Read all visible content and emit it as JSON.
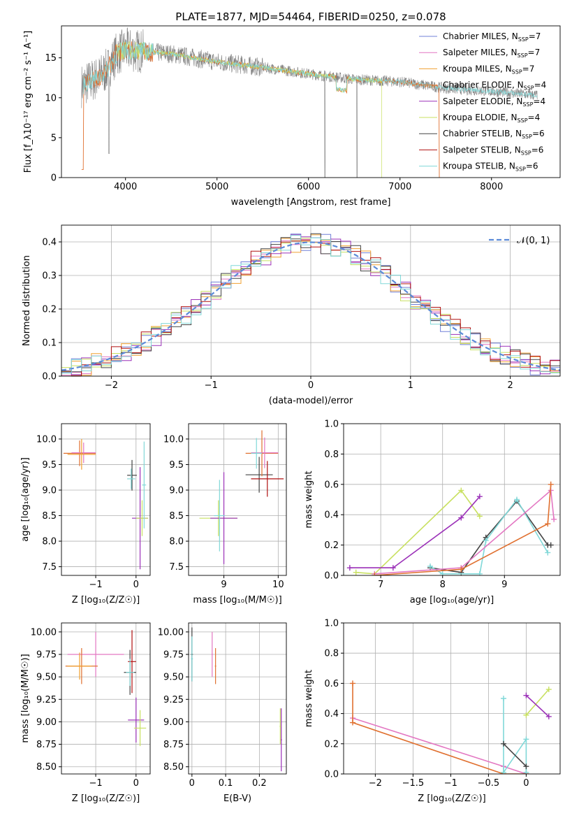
{
  "title": "PLATE=1877, MJD=54464, FIBERID=0250, z=0.078",
  "series_styles": [
    {
      "name": "Chabrier MILES",
      "nssp": "7",
      "color": "#7080d8"
    },
    {
      "name": "Salpeter MILES",
      "nssp": "7",
      "color": "#e377c2"
    },
    {
      "name": "Kroupa MILES",
      "nssp": "7",
      "color": "#f0a030"
    },
    {
      "name": "Chabrier ELODIE",
      "nssp": "4",
      "color": "#e07030"
    },
    {
      "name": "Salpeter ELODIE",
      "nssp": "4",
      "color": "#9b30b8"
    },
    {
      "name": "Kroupa ELODIE",
      "nssp": "4",
      "color": "#c8e060"
    },
    {
      "name": "Chabrier STELIB",
      "nssp": "6",
      "color": "#444444"
    },
    {
      "name": "Salpeter STELIB",
      "nssp": "6",
      "color": "#b01010"
    },
    {
      "name": "Kroupa STELIB",
      "nssp": "6",
      "color": "#80d8d8"
    }
  ],
  "chart_data": [
    {
      "id": "spectrum",
      "type": "line",
      "xlabel": "wavelength [Angstrom, rest frame]",
      "ylabel": "Flux [f_λ10⁻¹⁷ erg cm⁻² s⁻¹ A⁻¹]",
      "xlim": [
        3300,
        8750
      ],
      "ylim": [
        0,
        19
      ],
      "xticks": [
        4000,
        5000,
        6000,
        7000,
        8000
      ],
      "yticks": [
        0,
        5,
        10,
        15
      ],
      "legend": "right",
      "data_points": [
        [
          3520,
          11.5
        ],
        [
          3600,
          12.0
        ],
        [
          3700,
          12.5
        ],
        [
          3800,
          13.5
        ],
        [
          3900,
          15.5
        ],
        [
          4000,
          16.0
        ],
        [
          4200,
          15.8
        ],
        [
          4500,
          15.5
        ],
        [
          5000,
          14.5
        ],
        [
          5500,
          13.8
        ],
        [
          6000,
          13.0
        ],
        [
          6500,
          12.3
        ],
        [
          7000,
          12.0
        ],
        [
          7500,
          11.2
        ],
        [
          8000,
          10.8
        ],
        [
          8500,
          10.3
        ]
      ]
    },
    {
      "id": "residuals",
      "type": "line",
      "xlabel": "(data-model)/error",
      "ylabel": "Normed distribution",
      "xlim": [
        -2.5,
        2.5
      ],
      "ylim": [
        0,
        0.45
      ],
      "xticks": [
        -2,
        -1,
        0,
        1,
        2
      ],
      "yticks": [
        0.0,
        0.1,
        0.2,
        0.3,
        0.4
      ],
      "legend_label": "𝒩(0, 1)",
      "legend": "top-right"
    },
    {
      "id": "age_vs_Z",
      "type": "scatter",
      "xlabel": "Z [log₁₀(Z/Z☉)]",
      "ylabel": "age  [log₁₀(age/yr)]",
      "xlim": [
        -1.85,
        0.35
      ],
      "ylim": [
        7.33,
        10.3
      ],
      "xticks": [
        -1,
        0
      ],
      "yticks": [
        7.5,
        8.0,
        8.5,
        9.0,
        9.5,
        10.0
      ]
    },
    {
      "id": "age_vs_mass",
      "type": "scatter",
      "xlabel": "mass [log₁₀(M/M☉)]",
      "ylabel": "",
      "xlim": [
        8.35,
        10.15
      ],
      "ylim": [
        7.33,
        10.3
      ],
      "xticks": [
        9,
        10
      ],
      "yticks": [
        7.5,
        8.0,
        8.5,
        9.0,
        9.5,
        10.0
      ]
    },
    {
      "id": "weight_vs_age",
      "type": "line",
      "xlabel": "age  [log₁₀(age/yr)]",
      "ylabel": "mass weight",
      "xlim": [
        6.4,
        9.9
      ],
      "ylim": [
        0,
        1
      ],
      "xticks": [
        7,
        8,
        9
      ],
      "yticks": [
        0.0,
        0.2,
        0.4,
        0.6,
        0.8,
        1.0
      ],
      "series": [
        {
          "name": "Kroupa ELODIE",
          "x": [
            6.6,
            6.9,
            8.3,
            8.6
          ],
          "y": [
            0.02,
            0.01,
            0.56,
            0.39
          ]
        },
        {
          "name": "Salpeter ELODIE",
          "x": [
            6.5,
            7.2,
            8.3,
            8.6
          ],
          "y": [
            0.05,
            0.05,
            0.38,
            0.52
          ]
        },
        {
          "name": "Chabrier STELIB",
          "x": [
            7.8,
            8.3,
            8.7,
            9.2,
            9.7,
            9.75
          ],
          "y": [
            0.05,
            0.02,
            0.25,
            0.49,
            0.2,
            0.2
          ]
        },
        {
          "name": "Kroupa STELIB",
          "x": [
            7.8,
            8.0,
            8.6,
            8.7,
            9.2,
            9.7
          ],
          "y": [
            0.06,
            0.01,
            0.01,
            0.23,
            0.5,
            0.15
          ]
        },
        {
          "name": "Salpeter MILES",
          "x": [
            6.9,
            8.3,
            9.75,
            9.8
          ],
          "y": [
            0.01,
            0.05,
            0.56,
            0.37
          ]
        },
        {
          "name": "Chabrier ELODIE",
          "x": [
            6.9,
            8.3,
            9.7,
            9.75
          ],
          "y": [
            0.0,
            0.04,
            0.34,
            0.6
          ]
        }
      ]
    },
    {
      "id": "mass_vs_Z",
      "type": "scatter",
      "xlabel": "Z [log₁₀(Z/Z☉)]",
      "ylabel": "mass [log₁₀(M/M☉)]",
      "xlim": [
        -1.85,
        0.35
      ],
      "ylim": [
        8.42,
        10.1
      ],
      "xticks": [
        -1,
        0
      ],
      "yticks": [
        8.5,
        8.75,
        9.0,
        9.25,
        9.5,
        9.75,
        10.0
      ]
    },
    {
      "id": "mass_vs_ebv",
      "type": "scatter",
      "xlabel": "E(B-V)",
      "ylabel": "",
      "xlim": [
        -0.01,
        0.28
      ],
      "ylim": [
        8.42,
        10.1
      ],
      "xticks": [
        0.0,
        0.1,
        0.2
      ],
      "yticks": [
        8.5,
        8.75,
        9.0,
        9.25,
        9.5,
        9.75,
        10.0
      ]
    },
    {
      "id": "weight_vs_Z",
      "type": "line",
      "xlabel": "Z [log₁₀(Z/Z☉)]",
      "ylabel": "mass weight",
      "xlim": [
        -2.42,
        0.45
      ],
      "ylim": [
        0,
        1
      ],
      "xticks": [
        -2.0,
        -1.5,
        -1.0,
        -0.5,
        0.0
      ],
      "yticks": [
        0.0,
        0.2,
        0.4,
        0.6,
        0.8,
        1.0
      ],
      "series": [
        {
          "name": "Kroupa ELODIE",
          "x": [
            0.0,
            0.3
          ],
          "y": [
            0.39,
            0.56
          ]
        },
        {
          "name": "Salpeter ELODIE",
          "x": [
            0.0,
            0.3
          ],
          "y": [
            0.52,
            0.38
          ]
        },
        {
          "name": "Salpeter MILES",
          "x": [
            -2.3,
            -0.3,
            0.0
          ],
          "y": [
            0.37,
            0.05,
            0.0
          ]
        },
        {
          "name": "Chabrier ELODIE",
          "x": [
            -2.3,
            -2.3,
            -0.3,
            0.0
          ],
          "y": [
            0.6,
            0.34,
            0.0,
            0.0
          ]
        },
        {
          "name": "Kroupa STELIB",
          "x": [
            -0.3,
            -0.3,
            0.0,
            0.0
          ],
          "y": [
            0.5,
            0.01,
            0.23,
            0.01
          ]
        },
        {
          "name": "Chabrier STELIB",
          "x": [
            -0.3,
            0.0
          ],
          "y": [
            0.2,
            0.05
          ]
        }
      ]
    }
  ]
}
